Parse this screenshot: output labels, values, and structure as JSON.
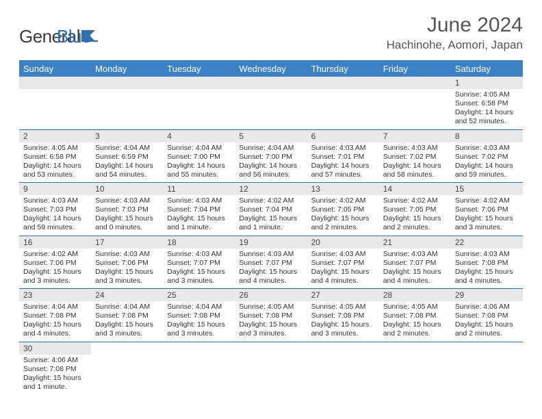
{
  "brand": {
    "part1": "General",
    "part2": "Blue"
  },
  "title": "June 2024",
  "location": "Hachinohe, Aomori, Japan",
  "colors": {
    "header_bg": "#3b82c4",
    "header_text": "#ffffff",
    "row_border": "#2f6fb0",
    "daynum_bg": "#e9e9e9",
    "text": "#333333"
  },
  "dayHeaders": [
    "Sunday",
    "Monday",
    "Tuesday",
    "Wednesday",
    "Thursday",
    "Friday",
    "Saturday"
  ],
  "weeks": [
    [
      null,
      null,
      null,
      null,
      null,
      null,
      {
        "n": "1",
        "sunrise": "4:05 AM",
        "sunset": "6:58 PM",
        "daylight": "14 hours and 52 minutes."
      }
    ],
    [
      {
        "n": "2",
        "sunrise": "4:05 AM",
        "sunset": "6:58 PM",
        "daylight": "14 hours and 53 minutes."
      },
      {
        "n": "3",
        "sunrise": "4:04 AM",
        "sunset": "6:59 PM",
        "daylight": "14 hours and 54 minutes."
      },
      {
        "n": "4",
        "sunrise": "4:04 AM",
        "sunset": "7:00 PM",
        "daylight": "14 hours and 55 minutes."
      },
      {
        "n": "5",
        "sunrise": "4:04 AM",
        "sunset": "7:00 PM",
        "daylight": "14 hours and 56 minutes."
      },
      {
        "n": "6",
        "sunrise": "4:03 AM",
        "sunset": "7:01 PM",
        "daylight": "14 hours and 57 minutes."
      },
      {
        "n": "7",
        "sunrise": "4:03 AM",
        "sunset": "7:02 PM",
        "daylight": "14 hours and 58 minutes."
      },
      {
        "n": "8",
        "sunrise": "4:03 AM",
        "sunset": "7:02 PM",
        "daylight": "14 hours and 59 minutes."
      }
    ],
    [
      {
        "n": "9",
        "sunrise": "4:03 AM",
        "sunset": "7:03 PM",
        "daylight": "14 hours and 59 minutes."
      },
      {
        "n": "10",
        "sunrise": "4:03 AM",
        "sunset": "7:03 PM",
        "daylight": "15 hours and 0 minutes."
      },
      {
        "n": "11",
        "sunrise": "4:03 AM",
        "sunset": "7:04 PM",
        "daylight": "15 hours and 1 minute."
      },
      {
        "n": "12",
        "sunrise": "4:02 AM",
        "sunset": "7:04 PM",
        "daylight": "15 hours and 1 minute."
      },
      {
        "n": "13",
        "sunrise": "4:02 AM",
        "sunset": "7:05 PM",
        "daylight": "15 hours and 2 minutes."
      },
      {
        "n": "14",
        "sunrise": "4:02 AM",
        "sunset": "7:05 PM",
        "daylight": "15 hours and 2 minutes."
      },
      {
        "n": "15",
        "sunrise": "4:02 AM",
        "sunset": "7:06 PM",
        "daylight": "15 hours and 3 minutes."
      }
    ],
    [
      {
        "n": "16",
        "sunrise": "4:02 AM",
        "sunset": "7:06 PM",
        "daylight": "15 hours and 3 minutes."
      },
      {
        "n": "17",
        "sunrise": "4:03 AM",
        "sunset": "7:06 PM",
        "daylight": "15 hours and 3 minutes."
      },
      {
        "n": "18",
        "sunrise": "4:03 AM",
        "sunset": "7:07 PM",
        "daylight": "15 hours and 3 minutes."
      },
      {
        "n": "19",
        "sunrise": "4:03 AM",
        "sunset": "7:07 PM",
        "daylight": "15 hours and 4 minutes."
      },
      {
        "n": "20",
        "sunrise": "4:03 AM",
        "sunset": "7:07 PM",
        "daylight": "15 hours and 4 minutes."
      },
      {
        "n": "21",
        "sunrise": "4:03 AM",
        "sunset": "7:07 PM",
        "daylight": "15 hours and 4 minutes."
      },
      {
        "n": "22",
        "sunrise": "4:03 AM",
        "sunset": "7:08 PM",
        "daylight": "15 hours and 4 minutes."
      }
    ],
    [
      {
        "n": "23",
        "sunrise": "4:04 AM",
        "sunset": "7:08 PM",
        "daylight": "15 hours and 4 minutes."
      },
      {
        "n": "24",
        "sunrise": "4:04 AM",
        "sunset": "7:08 PM",
        "daylight": "15 hours and 3 minutes."
      },
      {
        "n": "25",
        "sunrise": "4:04 AM",
        "sunset": "7:08 PM",
        "daylight": "15 hours and 3 minutes."
      },
      {
        "n": "26",
        "sunrise": "4:05 AM",
        "sunset": "7:08 PM",
        "daylight": "15 hours and 3 minutes."
      },
      {
        "n": "27",
        "sunrise": "4:05 AM",
        "sunset": "7:08 PM",
        "daylight": "15 hours and 3 minutes."
      },
      {
        "n": "28",
        "sunrise": "4:05 AM",
        "sunset": "7:08 PM",
        "daylight": "15 hours and 2 minutes."
      },
      {
        "n": "29",
        "sunrise": "4:06 AM",
        "sunset": "7:08 PM",
        "daylight": "15 hours and 2 minutes."
      }
    ],
    [
      {
        "n": "30",
        "sunrise": "4:06 AM",
        "sunset": "7:08 PM",
        "daylight": "15 hours and 1 minute."
      },
      null,
      null,
      null,
      null,
      null,
      null
    ]
  ],
  "labels": {
    "sunrise": "Sunrise:",
    "sunset": "Sunset:",
    "daylight": "Daylight:"
  }
}
